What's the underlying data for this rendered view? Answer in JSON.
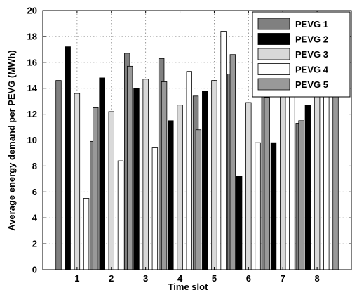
{
  "chart_data": {
    "type": "bar",
    "title": "",
    "xlabel": "Time slot",
    "ylabel": "Average energy demand per PEVG (MWh)",
    "categories": [
      "1",
      "2",
      "3",
      "4",
      "5",
      "6",
      "7",
      "8"
    ],
    "ylim": [
      0,
      20
    ],
    "yticks": [
      0,
      2,
      4,
      6,
      8,
      10,
      12,
      14,
      16,
      18,
      20
    ],
    "grid": true,
    "legend_position": "top-right",
    "series": [
      {
        "name": "PEVG 1",
        "color": "#808080",
        "values": [
          14.6,
          9.9,
          16.7,
          16.3,
          13.4,
          15.1,
          14.0,
          11.3
        ]
      },
      {
        "name": "PEVG 2",
        "color": "#000000",
        "values": [
          17.2,
          14.8,
          14.0,
          11.5,
          13.8,
          7.2,
          9.8,
          12.7
        ]
      },
      {
        "name": "PEVG 3",
        "color": "#d9d9d9",
        "values": [
          13.6,
          12.2,
          14.7,
          12.7,
          14.6,
          12.9,
          15.5,
          15.0
        ]
      },
      {
        "name": "PEVG 4",
        "color": "#ffffff",
        "values": [
          5.5,
          8.4,
          9.4,
          15.3,
          18.4,
          9.8,
          15.6,
          14.4
        ]
      },
      {
        "name": "PEVG 5",
        "color": "#999999",
        "values": [
          12.5,
          15.7,
          14.5,
          10.8,
          16.6,
          13.3,
          11.5,
          14.0
        ]
      }
    ]
  }
}
